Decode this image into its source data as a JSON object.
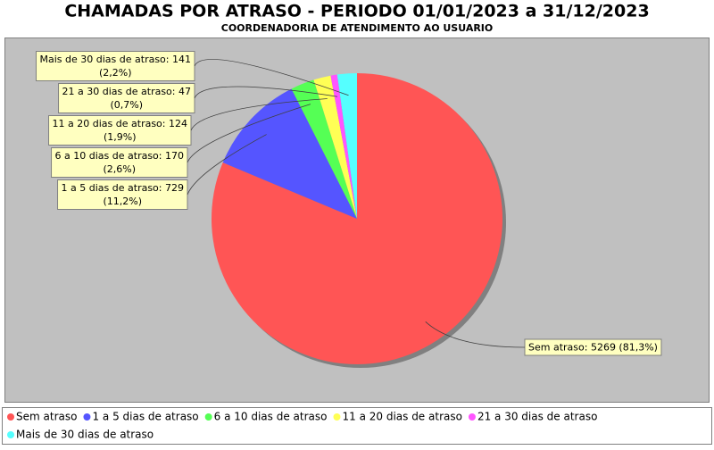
{
  "chart_data": {
    "type": "pie",
    "title": "CHAMADAS POR ATRASO - PERIODO 01/01/2023 a 31/12/2023",
    "subtitle": "COORDENADORIA DE ATENDIMENTO AO USUARIO",
    "categories": [
      "Sem atraso",
      "1 a 5 dias de atraso",
      "6 a 10 dias de atraso",
      "11 a 20 dias de atraso",
      "21 a 30 dias de atraso",
      "Mais de 30 dias de atraso"
    ],
    "values": [
      5269,
      729,
      170,
      124,
      47,
      141
    ],
    "value_labels": [
      [
        "Sem atraso: 5269 (81,3%)"
      ],
      [
        "1 a 5 dias de atraso: 729",
        "(11,2%)"
      ],
      [
        "6 a 10 dias de atraso: 170",
        "(2,6%)"
      ],
      [
        "11 a 20 dias de atraso: 124",
        "(1,9%)"
      ],
      [
        "21 a 30 dias de atraso: 47",
        "(0,7%)"
      ],
      [
        "Mais de 30 dias de atraso: 141",
        "(2,2%)"
      ]
    ],
    "colors": [
      "#ff5555",
      "#5555ff",
      "#55ff55",
      "#ffff55",
      "#ff55ff",
      "#55ffff"
    ],
    "legend": "bottom"
  }
}
